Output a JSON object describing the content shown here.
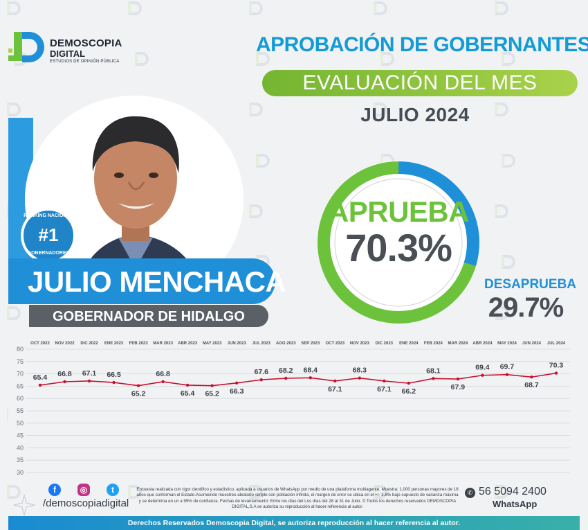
{
  "brand": {
    "name_line1": "DEMOSCOPIA",
    "name_line2": "DIGITAL",
    "tagline": "ESTUDIOS DE OPINIÓN PÚBLICA",
    "colors": {
      "blue": "#1f90d8",
      "green": "#6cc23a",
      "dark": "#4a4f55"
    }
  },
  "header": {
    "title": "APROBACIÓN DE GOBERNANTES",
    "subtitle": "EVALUACIÓN DEL MES",
    "period": "JULIO 2024"
  },
  "governor": {
    "name": "JULIO MENCHACA",
    "role": "GOBERNADOR DE HIDALGO",
    "rank": "#1",
    "rank_ring_top": "RANKING NACIONAL",
    "rank_ring_bottom": "GOBERNADORES"
  },
  "approval": {
    "approve_label": "APRUEBA",
    "approve_value": "70.3%",
    "disapprove_label": "DESAPRUEBA",
    "disapprove_value": "29.7%",
    "approve_fraction": 0.703
  },
  "chart_data": {
    "type": "line",
    "x": [
      "OCT 2022",
      "NOV 2022",
      "DIC 2022",
      "ENE 2023",
      "FEB 2023",
      "MAR 2023",
      "ABR 2023",
      "MAY 2023",
      "JUN 2023",
      "JUL 2023",
      "AGO 2023",
      "SEP 2023",
      "OCT 2023",
      "NOV 2023",
      "DIC 2023",
      "ENE 2024",
      "FEB 2024",
      "MAR 2024",
      "ABR 2024",
      "MAY 2024",
      "JUN 2024",
      "JUL 2024"
    ],
    "series": [
      {
        "values": [
          65.4,
          66.8,
          67.1,
          66.5,
          65.2,
          66.8,
          65.4,
          65.2,
          66.3,
          67.6,
          68.2,
          68.4,
          67.1,
          68.3,
          67.1,
          66.2,
          68.1,
          67.9,
          69.4,
          69.7,
          68.7,
          70.3
        ]
      }
    ],
    "ylim": [
      30,
      80
    ],
    "yticks": [
      30,
      35,
      40,
      45,
      50,
      55,
      60,
      65,
      70,
      75,
      80
    ],
    "grid": true,
    "line_color": "#c8102e"
  },
  "footer": {
    "handle": "/demoscopiadigital",
    "disclaimer": "Encuesta realizada con rigor científico y estadístico, aplicada a usuarios de WhatsApp por medio de una plataforma multiagente. Muestra: 1,000 personas mayores de 18 años que conforman el Estado.Asumiendo muestreo aleatorio simple con población infinita, el margen de error se ubica en el +/- 3.8% bajo supuesto de varianza máxima y se determina en un a 95% de confianza. Fechas de levantamiento: Entre los días del Los días del 28 al 31 de Julio. © Todos los derechos reservados DEMOSCOPIA DIGITAL,S.A se autoriza su reproducción al hacer referencia al autor.",
    "phone": "56 5094 2400",
    "whatsapp": "WhatsApp",
    "rights": "Derechos Reservados Demoscopia Digital, se autoriza reproducción al hacer referencia al autor."
  }
}
